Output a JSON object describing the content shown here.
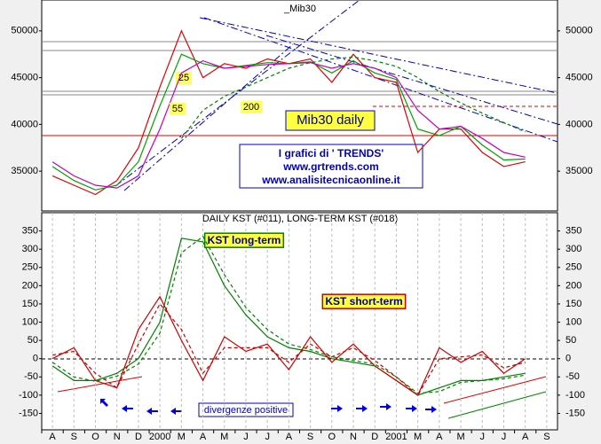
{
  "chart_data": [
    {
      "type": "line",
      "title": "_Mib30",
      "categories": [
        "A",
        "S",
        "O",
        "N",
        "D",
        "2000",
        "M",
        "A",
        "M",
        "J",
        "J",
        "A",
        "S",
        "O",
        "N",
        "D",
        "2001",
        "M",
        "A",
        "M",
        "J",
        "J",
        "A",
        "S"
      ],
      "ylim": [
        30750,
        53300
      ],
      "yticks": [
        35000,
        40000,
        45000,
        50000
      ],
      "series": [
        {
          "color": "#e00000",
          "values": [
            34500,
            33500,
            32500,
            34000,
            37500,
            44000,
            50000,
            45000,
            46500,
            46000,
            47000,
            46500,
            47000,
            44500,
            47500,
            45000,
            44500,
            37000,
            39500,
            39500,
            37000,
            35500,
            36000,
            null
          ]
        },
        {
          "name": "25",
          "color": "#00a000",
          "values": [
            35500,
            34000,
            33000,
            33500,
            36000,
            42000,
            47500,
            46500,
            46000,
            46300,
            46600,
            46500,
            46700,
            45500,
            46800,
            45500,
            44800,
            39500,
            38800,
            39800,
            37800,
            36200,
            36300,
            null
          ]
        },
        {
          "name": "55",
          "color": "#c000c0",
          "values": [
            36000,
            34500,
            33500,
            33200,
            34500,
            39500,
            45500,
            46800,
            46000,
            46200,
            46400,
            46500,
            46600,
            46000,
            46500,
            46000,
            45000,
            41500,
            39500,
            39800,
            38500,
            37000,
            36500,
            null
          ]
        },
        {
          "name": "200",
          "color": "#008000",
          "dash": true,
          "values": [
            null,
            null,
            null,
            null,
            null,
            null,
            38500,
            41500,
            43000,
            44000,
            45000,
            46000,
            46600,
            47000,
            47200,
            46800,
            46200,
            45000,
            43500,
            42300,
            41200,
            40200,
            39200,
            null
          ]
        }
      ],
      "annotations": [
        "Mib30 daily",
        "I grafici di ' TRENDS'",
        "www.grtrends.com",
        "www.analisitecnicaonline.it"
      ]
    },
    {
      "type": "line",
      "title": "DAILY KST (#011), LONG-TERM KST (#018)",
      "categories": [
        "A",
        "S",
        "O",
        "N",
        "D",
        "2000",
        "M",
        "A",
        "M",
        "J",
        "J",
        "A",
        "S",
        "O",
        "N",
        "D",
        "2001",
        "M",
        "A",
        "M",
        "J",
        "J",
        "A",
        "S"
      ],
      "ylim": [
        -195,
        400
      ],
      "yticks": [
        -150,
        -100,
        -50,
        0,
        50,
        100,
        150,
        200,
        250,
        300,
        350
      ],
      "series": [
        {
          "name": "KST long-term",
          "color": "#008000",
          "values": [
            -20,
            -60,
            -60,
            -40,
            0,
            100,
            330,
            320,
            200,
            120,
            60,
            30,
            20,
            0,
            -10,
            -20,
            -60,
            -100,
            -80,
            -60,
            -60,
            -50,
            -40,
            null
          ]
        },
        {
          "color": "#008000",
          "dash": true,
          "values": [
            -10,
            -50,
            -62,
            -48,
            -15,
            70,
            290,
            335,
            230,
            140,
            80,
            40,
            25,
            5,
            -5,
            -15,
            -50,
            -95,
            -90,
            -65,
            -60,
            -55,
            -45,
            null
          ]
        },
        {
          "name": "KST short-term",
          "color": "#cc0000",
          "values": [
            0,
            30,
            -60,
            -80,
            80,
            170,
            50,
            -60,
            60,
            20,
            40,
            -30,
            60,
            -10,
            40,
            -20,
            -60,
            -100,
            30,
            -10,
            20,
            -40,
            0,
            null
          ]
        },
        {
          "color": "#cc0000",
          "dash": true,
          "values": [
            10,
            20,
            -40,
            -80,
            40,
            150,
            80,
            -40,
            30,
            30,
            30,
            -10,
            40,
            5,
            30,
            -5,
            -50,
            -100,
            0,
            5,
            10,
            -25,
            -10,
            null
          ]
        }
      ],
      "annotations": [
        "divergenze positive"
      ]
    }
  ]
}
